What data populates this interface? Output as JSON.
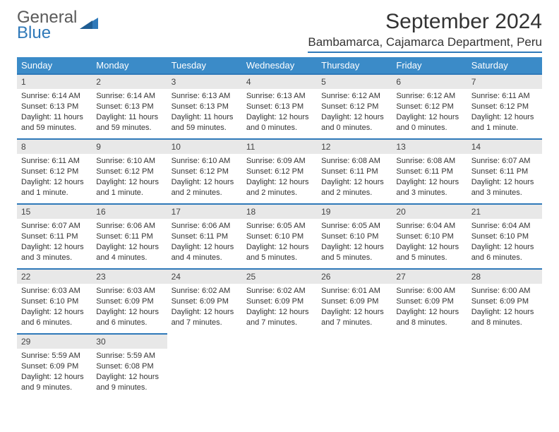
{
  "logo": {
    "line1": "General",
    "line2": "Blue"
  },
  "title": "September 2024",
  "location": "Bambamarca, Cajamarca Department, Peru",
  "colors": {
    "header_bg": "#3b8bc8",
    "header_text": "#ffffff",
    "accent_border": "#2f79b9",
    "daynum_bg": "#e8e8e8",
    "body_text": "#333333",
    "logo_gray": "#5a5a5a",
    "logo_blue": "#2f79b9",
    "page_bg": "#ffffff"
  },
  "weekdays": [
    "Sunday",
    "Monday",
    "Tuesday",
    "Wednesday",
    "Thursday",
    "Friday",
    "Saturday"
  ],
  "days": [
    {
      "n": "1",
      "sr": "Sunrise: 6:14 AM",
      "ss": "Sunset: 6:13 PM",
      "dl1": "Daylight: 11 hours",
      "dl2": "and 59 minutes."
    },
    {
      "n": "2",
      "sr": "Sunrise: 6:14 AM",
      "ss": "Sunset: 6:13 PM",
      "dl1": "Daylight: 11 hours",
      "dl2": "and 59 minutes."
    },
    {
      "n": "3",
      "sr": "Sunrise: 6:13 AM",
      "ss": "Sunset: 6:13 PM",
      "dl1": "Daylight: 11 hours",
      "dl2": "and 59 minutes."
    },
    {
      "n": "4",
      "sr": "Sunrise: 6:13 AM",
      "ss": "Sunset: 6:13 PM",
      "dl1": "Daylight: 12 hours",
      "dl2": "and 0 minutes."
    },
    {
      "n": "5",
      "sr": "Sunrise: 6:12 AM",
      "ss": "Sunset: 6:12 PM",
      "dl1": "Daylight: 12 hours",
      "dl2": "and 0 minutes."
    },
    {
      "n": "6",
      "sr": "Sunrise: 6:12 AM",
      "ss": "Sunset: 6:12 PM",
      "dl1": "Daylight: 12 hours",
      "dl2": "and 0 minutes."
    },
    {
      "n": "7",
      "sr": "Sunrise: 6:11 AM",
      "ss": "Sunset: 6:12 PM",
      "dl1": "Daylight: 12 hours",
      "dl2": "and 1 minute."
    },
    {
      "n": "8",
      "sr": "Sunrise: 6:11 AM",
      "ss": "Sunset: 6:12 PM",
      "dl1": "Daylight: 12 hours",
      "dl2": "and 1 minute."
    },
    {
      "n": "9",
      "sr": "Sunrise: 6:10 AM",
      "ss": "Sunset: 6:12 PM",
      "dl1": "Daylight: 12 hours",
      "dl2": "and 1 minute."
    },
    {
      "n": "10",
      "sr": "Sunrise: 6:10 AM",
      "ss": "Sunset: 6:12 PM",
      "dl1": "Daylight: 12 hours",
      "dl2": "and 2 minutes."
    },
    {
      "n": "11",
      "sr": "Sunrise: 6:09 AM",
      "ss": "Sunset: 6:12 PM",
      "dl1": "Daylight: 12 hours",
      "dl2": "and 2 minutes."
    },
    {
      "n": "12",
      "sr": "Sunrise: 6:08 AM",
      "ss": "Sunset: 6:11 PM",
      "dl1": "Daylight: 12 hours",
      "dl2": "and 2 minutes."
    },
    {
      "n": "13",
      "sr": "Sunrise: 6:08 AM",
      "ss": "Sunset: 6:11 PM",
      "dl1": "Daylight: 12 hours",
      "dl2": "and 3 minutes."
    },
    {
      "n": "14",
      "sr": "Sunrise: 6:07 AM",
      "ss": "Sunset: 6:11 PM",
      "dl1": "Daylight: 12 hours",
      "dl2": "and 3 minutes."
    },
    {
      "n": "15",
      "sr": "Sunrise: 6:07 AM",
      "ss": "Sunset: 6:11 PM",
      "dl1": "Daylight: 12 hours",
      "dl2": "and 3 minutes."
    },
    {
      "n": "16",
      "sr": "Sunrise: 6:06 AM",
      "ss": "Sunset: 6:11 PM",
      "dl1": "Daylight: 12 hours",
      "dl2": "and 4 minutes."
    },
    {
      "n": "17",
      "sr": "Sunrise: 6:06 AM",
      "ss": "Sunset: 6:11 PM",
      "dl1": "Daylight: 12 hours",
      "dl2": "and 4 minutes."
    },
    {
      "n": "18",
      "sr": "Sunrise: 6:05 AM",
      "ss": "Sunset: 6:10 PM",
      "dl1": "Daylight: 12 hours",
      "dl2": "and 5 minutes."
    },
    {
      "n": "19",
      "sr": "Sunrise: 6:05 AM",
      "ss": "Sunset: 6:10 PM",
      "dl1": "Daylight: 12 hours",
      "dl2": "and 5 minutes."
    },
    {
      "n": "20",
      "sr": "Sunrise: 6:04 AM",
      "ss": "Sunset: 6:10 PM",
      "dl1": "Daylight: 12 hours",
      "dl2": "and 5 minutes."
    },
    {
      "n": "21",
      "sr": "Sunrise: 6:04 AM",
      "ss": "Sunset: 6:10 PM",
      "dl1": "Daylight: 12 hours",
      "dl2": "and 6 minutes."
    },
    {
      "n": "22",
      "sr": "Sunrise: 6:03 AM",
      "ss": "Sunset: 6:10 PM",
      "dl1": "Daylight: 12 hours",
      "dl2": "and 6 minutes."
    },
    {
      "n": "23",
      "sr": "Sunrise: 6:03 AM",
      "ss": "Sunset: 6:09 PM",
      "dl1": "Daylight: 12 hours",
      "dl2": "and 6 minutes."
    },
    {
      "n": "24",
      "sr": "Sunrise: 6:02 AM",
      "ss": "Sunset: 6:09 PM",
      "dl1": "Daylight: 12 hours",
      "dl2": "and 7 minutes."
    },
    {
      "n": "25",
      "sr": "Sunrise: 6:02 AM",
      "ss": "Sunset: 6:09 PM",
      "dl1": "Daylight: 12 hours",
      "dl2": "and 7 minutes."
    },
    {
      "n": "26",
      "sr": "Sunrise: 6:01 AM",
      "ss": "Sunset: 6:09 PM",
      "dl1": "Daylight: 12 hours",
      "dl2": "and 7 minutes."
    },
    {
      "n": "27",
      "sr": "Sunrise: 6:00 AM",
      "ss": "Sunset: 6:09 PM",
      "dl1": "Daylight: 12 hours",
      "dl2": "and 8 minutes."
    },
    {
      "n": "28",
      "sr": "Sunrise: 6:00 AM",
      "ss": "Sunset: 6:09 PM",
      "dl1": "Daylight: 12 hours",
      "dl2": "and 8 minutes."
    },
    {
      "n": "29",
      "sr": "Sunrise: 5:59 AM",
      "ss": "Sunset: 6:09 PM",
      "dl1": "Daylight: 12 hours",
      "dl2": "and 9 minutes."
    },
    {
      "n": "30",
      "sr": "Sunrise: 5:59 AM",
      "ss": "Sunset: 6:08 PM",
      "dl1": "Daylight: 12 hours",
      "dl2": "and 9 minutes."
    }
  ]
}
